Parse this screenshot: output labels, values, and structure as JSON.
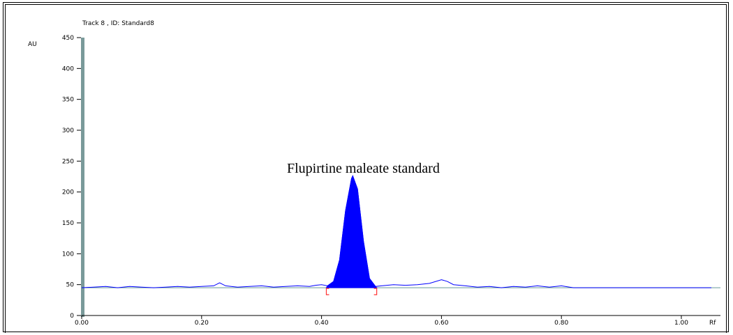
{
  "chart_data": {
    "type": "line",
    "title": "Track  8 , ID: Standard8",
    "xlabel": "Rf",
    "ylabel": "AU",
    "xlim": [
      0.0,
      1.0
    ],
    "ylim": [
      0,
      450
    ],
    "x_ticks": [
      "0.00",
      "0.20",
      "0.40",
      "0.60",
      "0.80",
      "1.00"
    ],
    "y_ticks": [
      "0",
      "50",
      "100",
      "150",
      "200",
      "250",
      "300",
      "350",
      "400",
      "450"
    ],
    "baseline": 45,
    "annotation": "Flupirtine maleate standard",
    "peak": {
      "x": 0.452,
      "y": 226,
      "start": 0.408,
      "end": 0.492
    },
    "series": [
      {
        "x": [
          0.0,
          0.02,
          0.04,
          0.06,
          0.08,
          0.1,
          0.12,
          0.14,
          0.16,
          0.18,
          0.2,
          0.22,
          0.23,
          0.24,
          0.26,
          0.28,
          0.3,
          0.32,
          0.34,
          0.36,
          0.38,
          0.39,
          0.4,
          0.41,
          0.42,
          0.43,
          0.44,
          0.45,
          0.452,
          0.46,
          0.47,
          0.48,
          0.49,
          0.5,
          0.52,
          0.54,
          0.56,
          0.58,
          0.6,
          0.61,
          0.62,
          0.64,
          0.66,
          0.68,
          0.7,
          0.72,
          0.74,
          0.76,
          0.78,
          0.8,
          0.82,
          0.86,
          0.9,
          0.95,
          1.0,
          1.05
        ],
        "y": [
          45,
          46,
          47,
          45,
          47,
          46,
          45,
          46,
          47,
          46,
          47,
          48,
          53,
          48,
          46,
          47,
          48,
          46,
          47,
          48,
          47,
          49,
          50,
          48,
          55,
          90,
          170,
          222,
          226,
          205,
          120,
          60,
          47,
          48,
          50,
          49,
          50,
          52,
          58,
          55,
          50,
          48,
          46,
          47,
          45,
          47,
          46,
          48,
          46,
          48,
          45,
          45,
          45,
          45,
          45,
          45
        ]
      }
    ],
    "colors": {
      "line": "#0000ff",
      "fill": "#0000ff",
      "baseline": "#669999",
      "axis": "#7a9a9a",
      "marker": "#ff3333"
    }
  }
}
